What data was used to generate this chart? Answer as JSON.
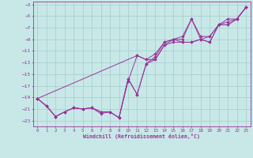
{
  "title": "",
  "xlabel": "Windchill (Refroidissement éolien,°C)",
  "bg_color": "#c8e8e8",
  "grid_color": "#aacfcf",
  "line_color": "#993399",
  "marker_color": "#993399",
  "xlim": [
    -0.5,
    23.5
  ],
  "ylim": [
    -24,
    -2.5
  ],
  "xticks": [
    0,
    1,
    2,
    3,
    4,
    5,
    6,
    7,
    8,
    9,
    10,
    11,
    12,
    13,
    14,
    15,
    16,
    17,
    18,
    19,
    20,
    21,
    22,
    23
  ],
  "yticks": [
    -3,
    -5,
    -7,
    -9,
    -11,
    -13,
    -15,
    -17,
    -19,
    -21,
    -23
  ],
  "series": [
    [
      [
        0,
        -19.2
      ],
      [
        1,
        -20.5
      ],
      [
        2,
        -22.3
      ],
      [
        3,
        -21.5
      ],
      [
        4,
        -20.8
      ],
      [
        5,
        -21.0
      ],
      [
        6,
        -20.8
      ],
      [
        7,
        -21.8
      ],
      [
        8,
        -21.5
      ],
      [
        9,
        -22.5
      ],
      [
        10,
        -15.8
      ],
      [
        11,
        -18.5
      ],
      [
        12,
        -13.2
      ],
      [
        13,
        -12.5
      ],
      [
        14,
        -10.0
      ],
      [
        15,
        -9.5
      ],
      [
        16,
        -9.5
      ],
      [
        17,
        -9.5
      ],
      [
        18,
        -9.0
      ],
      [
        19,
        -9.5
      ],
      [
        20,
        -6.5
      ],
      [
        21,
        -6.5
      ],
      [
        22,
        -5.5
      ],
      [
        23,
        -3.5
      ]
    ],
    [
      [
        0,
        -19.2
      ],
      [
        1,
        -20.5
      ],
      [
        2,
        -22.3
      ],
      [
        3,
        -21.5
      ],
      [
        4,
        -20.8
      ],
      [
        5,
        -21.0
      ],
      [
        6,
        -20.8
      ],
      [
        7,
        -21.5
      ],
      [
        8,
        -21.5
      ],
      [
        9,
        -22.5
      ],
      [
        10,
        -16.2
      ],
      [
        11,
        -11.8
      ],
      [
        12,
        -12.5
      ],
      [
        13,
        -12.5
      ],
      [
        14,
        -10.0
      ],
      [
        15,
        -9.0
      ],
      [
        16,
        -9.5
      ],
      [
        17,
        -9.5
      ],
      [
        18,
        -9.0
      ],
      [
        19,
        -9.5
      ],
      [
        20,
        -6.5
      ],
      [
        21,
        -6.5
      ],
      [
        22,
        -5.5
      ],
      [
        23,
        -3.5
      ]
    ],
    [
      [
        0,
        -19.2
      ],
      [
        11,
        -11.8
      ],
      [
        12,
        -12.5
      ],
      [
        13,
        -11.5
      ],
      [
        14,
        -9.5
      ],
      [
        15,
        -9.0
      ],
      [
        16,
        -8.5
      ],
      [
        17,
        -5.5
      ],
      [
        18,
        -9.0
      ],
      [
        19,
        -8.5
      ],
      [
        20,
        -6.5
      ],
      [
        21,
        -6.0
      ],
      [
        22,
        -5.5
      ],
      [
        23,
        -3.5
      ]
    ],
    [
      [
        0,
        -19.2
      ],
      [
        1,
        -20.5
      ],
      [
        2,
        -22.3
      ],
      [
        3,
        -21.5
      ],
      [
        4,
        -20.8
      ],
      [
        5,
        -21.0
      ],
      [
        6,
        -20.8
      ],
      [
        7,
        -21.5
      ],
      [
        8,
        -21.5
      ],
      [
        9,
        -22.5
      ],
      [
        10,
        -15.8
      ],
      [
        11,
        -18.5
      ],
      [
        12,
        -13.2
      ],
      [
        13,
        -12.0
      ],
      [
        14,
        -9.5
      ],
      [
        15,
        -9.0
      ],
      [
        16,
        -9.0
      ],
      [
        17,
        -5.5
      ],
      [
        18,
        -8.5
      ],
      [
        19,
        -8.5
      ],
      [
        20,
        -6.5
      ],
      [
        21,
        -5.5
      ],
      [
        22,
        -5.5
      ],
      [
        23,
        -3.5
      ]
    ]
  ]
}
